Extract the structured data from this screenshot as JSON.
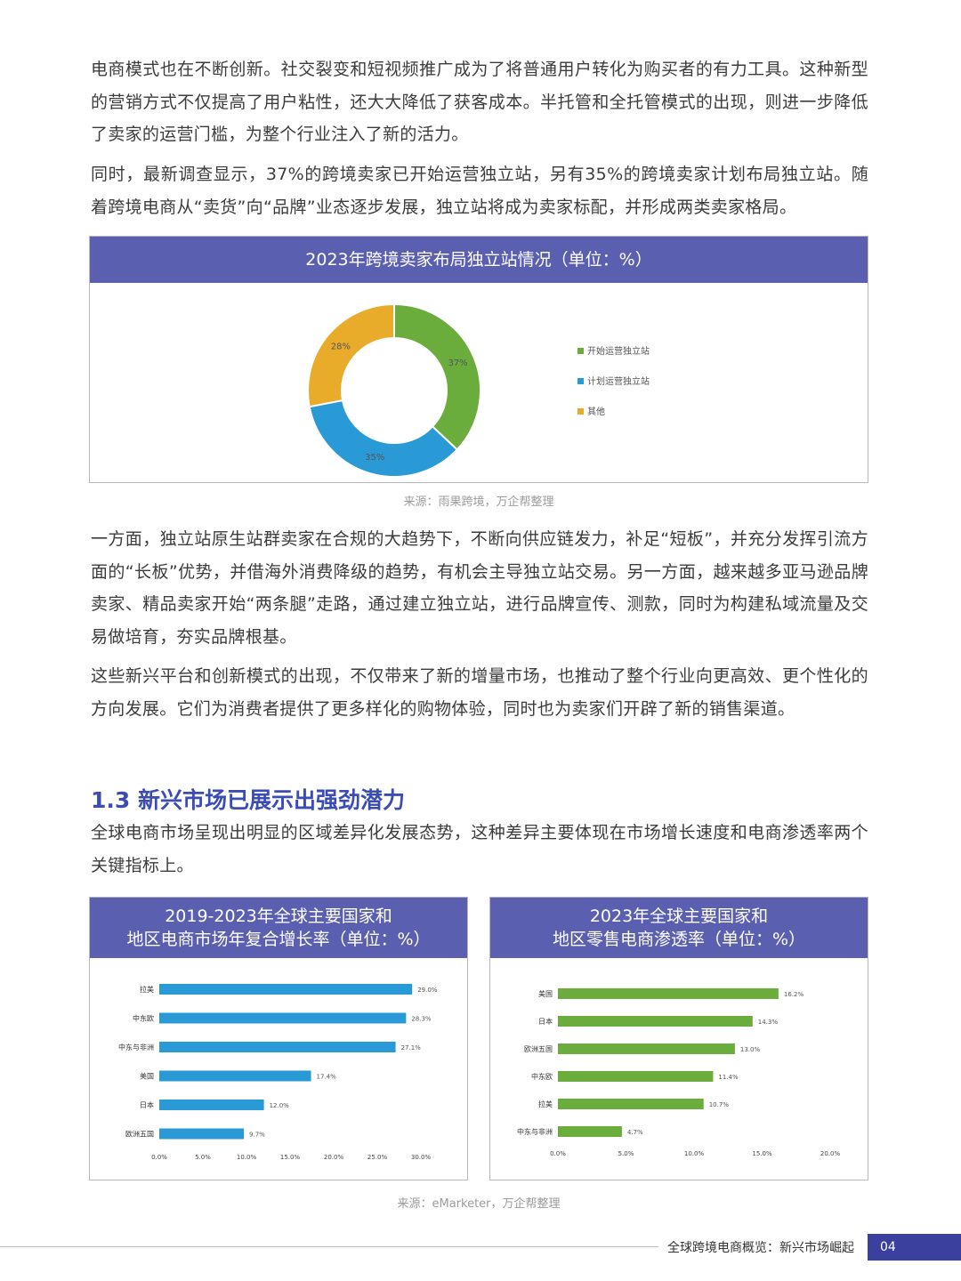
{
  "paragraphs": [
    "电商模式也在不断创新。社交裂变和短视频推广成为了将普通用户转化为购买者的有力工具。这种新型的营销方式不仅提高了用户粘性，还大大降低了获客成本。半托管和全托管模式的出现，则进一步降低了卖家的运营门槛，为整个行业注入了新的活力。",
    "同时，最新调查显示，37%的跨境卖家已开始运营独立站，另有35%的跨境卖家计划布局独立站。随着跨境电商从“卖货”向“品牌”业态逐步发展，独立站将成为卖家标配，并形成两类卖家格局。",
    "一方面，独立站原生站群卖家在合规的大趋势下，不断向供应链发力，补足“短板”，并充分发挥引流方面的“长板”优势，并借海外消费降级的趋势，有机会主导独立站交易。另一方面，越来越多亚马逊品牌卖家、精品卖家开始“两条腿”走路，通过建立独立站，进行品牌宣传、测款，同时为构建私域流量及交易做培育，夯实品牌根基。",
    "这些新兴平台和创新模式的出现，不仅带来了新的增量市场，也推动了整个行业向更高效、更个性化的方向发展。它们为消费者提供了更多样化的购物体验，同时也为卖家们开辟了新的销售渠道。",
    "全球电商市场呈现出明显的区域差异化发展态势，这种差异主要体现在市场增长速度和电商渗透率两个关键指标上。"
  ],
  "section_heading": "1.3 新兴市场已展示出强劲潜力",
  "source_1": "来源：雨果跨境，万企帮整理",
  "source_2": "来源：eMarketer，万企帮整理",
  "footer": {
    "title": "全球跨境电商概览：新兴市场崛起",
    "page": "04"
  },
  "colors": {
    "header": "#5b5fb0",
    "green": "#6aad3c",
    "blue": "#2a9ad6",
    "gold": "#e8ac2a"
  },
  "chart_data": [
    {
      "type": "pie",
      "title": "2023年跨境卖家布局独立站情况（单位：%）",
      "labels": [
        "开始运营独立站",
        "计划运营独立站",
        "其他"
      ],
      "value_labels": [
        "37%",
        "35%",
        "28%"
      ],
      "values": [
        37,
        35,
        28
      ],
      "colors": [
        "#6aad3c",
        "#2a9ad6",
        "#e8ac2a"
      ],
      "legend": "right"
    },
    {
      "type": "bar",
      "orientation": "horizontal",
      "title_lines": [
        "2019-2023年全球主要国家和",
        "地区电商市场年复合增长率（单位：%）"
      ],
      "categories": [
        "拉美",
        "中东欧",
        "中东与非洲",
        "美国",
        "日本",
        "欧洲五国"
      ],
      "values": [
        29.0,
        28.3,
        27.1,
        17.4,
        12.0,
        9.7
      ],
      "value_labels": [
        "29.0%",
        "28.3%",
        "27.1%",
        "17.4%",
        "12.0%",
        "9.7%"
      ],
      "xlim": [
        0,
        30
      ],
      "xticks": [
        "0.0%",
        "5.0%",
        "10.0%",
        "15.0%",
        "20.0%",
        "25.0%",
        "30.0%"
      ],
      "color": "#2a9ad6"
    },
    {
      "type": "bar",
      "orientation": "horizontal",
      "title_lines": [
        "2023年全球主要国家和",
        "地区零售电商渗透率（单位：%）"
      ],
      "categories": [
        "美国",
        "日本",
        "欧洲五国",
        "中东欧",
        "拉美",
        "中东与非洲"
      ],
      "values": [
        16.2,
        14.3,
        13.0,
        11.4,
        10.7,
        4.7
      ],
      "value_labels": [
        "16.2%",
        "14.3%",
        "13.0%",
        "11.4%",
        "10.7%",
        "4.7%"
      ],
      "xlim": [
        0,
        20
      ],
      "xticks": [
        "0.0%",
        "5.0%",
        "10.0%",
        "15.0%",
        "20.0%"
      ],
      "color": "#6aad3c"
    }
  ]
}
